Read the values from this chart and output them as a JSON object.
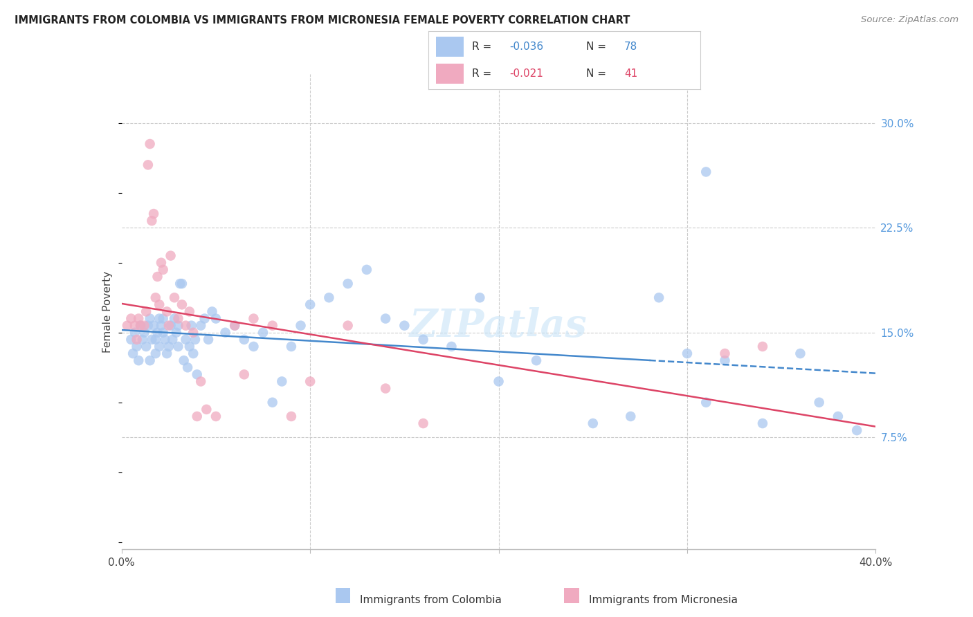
{
  "title": "IMMIGRANTS FROM COLOMBIA VS IMMIGRANTS FROM MICRONESIA FEMALE POVERTY CORRELATION CHART",
  "source": "Source: ZipAtlas.com",
  "ylabel": "Female Poverty",
  "xlim": [
    0.0,
    0.4
  ],
  "ylim": [
    -0.005,
    0.335
  ],
  "yticks": [
    0.075,
    0.15,
    0.225,
    0.3
  ],
  "ytick_labels": [
    "7.5%",
    "15.0%",
    "22.5%",
    "30.0%"
  ],
  "xtick_positions": [
    0.0,
    0.1,
    0.2,
    0.3,
    0.4
  ],
  "legend_r_colombia": "-0.036",
  "legend_n_colombia": "78",
  "legend_r_micronesia": "-0.021",
  "legend_n_micronesia": "41",
  "color_colombia": "#aac8f0",
  "color_micronesia": "#f0aac0",
  "line_color_colombia": "#4488cc",
  "line_color_micronesia": "#dd4466",
  "watermark": "ZIPatlas",
  "colombia_x": [
    0.005,
    0.006,
    0.007,
    0.008,
    0.009,
    0.01,
    0.011,
    0.012,
    0.013,
    0.014,
    0.015,
    0.015,
    0.016,
    0.017,
    0.018,
    0.018,
    0.019,
    0.02,
    0.02,
    0.021,
    0.022,
    0.022,
    0.023,
    0.024,
    0.025,
    0.026,
    0.027,
    0.028,
    0.029,
    0.03,
    0.03,
    0.031,
    0.032,
    0.033,
    0.034,
    0.035,
    0.036,
    0.037,
    0.038,
    0.039,
    0.04,
    0.042,
    0.044,
    0.046,
    0.048,
    0.05,
    0.055,
    0.06,
    0.065,
    0.07,
    0.075,
    0.08,
    0.085,
    0.09,
    0.095,
    0.1,
    0.11,
    0.12,
    0.13,
    0.14,
    0.15,
    0.16,
    0.175,
    0.19,
    0.2,
    0.22,
    0.25,
    0.27,
    0.3,
    0.31,
    0.32,
    0.34,
    0.36,
    0.37,
    0.38,
    0.39,
    0.31,
    0.285
  ],
  "colombia_y": [
    0.145,
    0.135,
    0.15,
    0.14,
    0.13,
    0.155,
    0.145,
    0.15,
    0.14,
    0.155,
    0.16,
    0.13,
    0.145,
    0.155,
    0.145,
    0.135,
    0.15,
    0.16,
    0.14,
    0.155,
    0.16,
    0.15,
    0.145,
    0.135,
    0.14,
    0.155,
    0.145,
    0.16,
    0.15,
    0.155,
    0.14,
    0.185,
    0.185,
    0.13,
    0.145,
    0.125,
    0.14,
    0.155,
    0.135,
    0.145,
    0.12,
    0.155,
    0.16,
    0.145,
    0.165,
    0.16,
    0.15,
    0.155,
    0.145,
    0.14,
    0.15,
    0.1,
    0.115,
    0.14,
    0.155,
    0.17,
    0.175,
    0.185,
    0.195,
    0.16,
    0.155,
    0.145,
    0.14,
    0.175,
    0.115,
    0.13,
    0.085,
    0.09,
    0.135,
    0.1,
    0.13,
    0.085,
    0.135,
    0.1,
    0.09,
    0.08,
    0.265,
    0.175
  ],
  "micronesia_x": [
    0.003,
    0.005,
    0.007,
    0.008,
    0.009,
    0.01,
    0.012,
    0.013,
    0.014,
    0.015,
    0.016,
    0.017,
    0.018,
    0.019,
    0.02,
    0.021,
    0.022,
    0.024,
    0.025,
    0.026,
    0.028,
    0.03,
    0.032,
    0.034,
    0.036,
    0.038,
    0.04,
    0.042,
    0.045,
    0.05,
    0.06,
    0.065,
    0.07,
    0.08,
    0.09,
    0.1,
    0.12,
    0.14,
    0.16,
    0.32,
    0.34
  ],
  "micronesia_y": [
    0.155,
    0.16,
    0.155,
    0.145,
    0.16,
    0.155,
    0.155,
    0.165,
    0.27,
    0.285,
    0.23,
    0.235,
    0.175,
    0.19,
    0.17,
    0.2,
    0.195,
    0.165,
    0.155,
    0.205,
    0.175,
    0.16,
    0.17,
    0.155,
    0.165,
    0.15,
    0.09,
    0.115,
    0.095,
    0.09,
    0.155,
    0.12,
    0.16,
    0.155,
    0.09,
    0.115,
    0.155,
    0.11,
    0.085,
    0.135,
    0.14
  ]
}
